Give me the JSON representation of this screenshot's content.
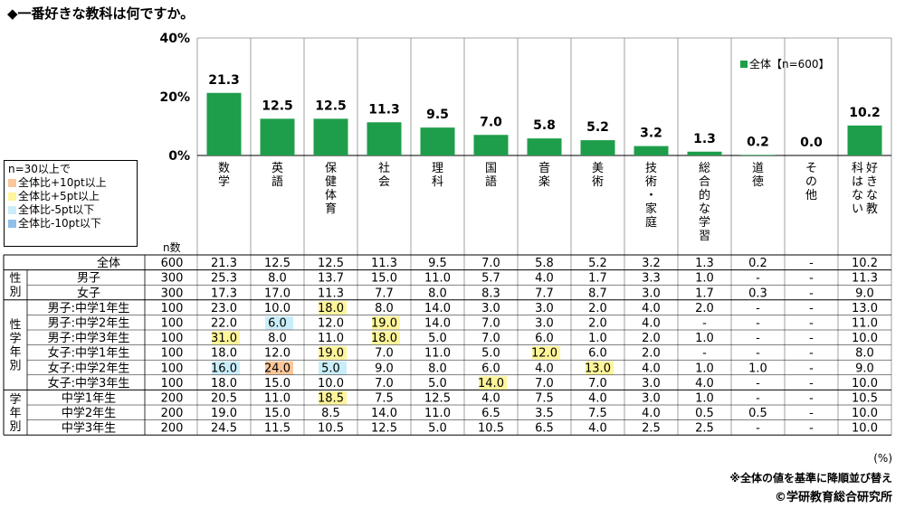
{
  "title": "◆一番好きな教科は何ですか。",
  "colors": {
    "bar": "#1e9e4a",
    "orange": "#fbc79a",
    "yellow": "#fff59a",
    "lightblue": "#c9eefa",
    "blue": "#8fc0ea"
  },
  "legend": {
    "title": "n=30以上で",
    "items": [
      {
        "label": "全体比+10pt以上",
        "color": "#fbc79a"
      },
      {
        "label": "全体比+5pt以上",
        "color": "#fff59a"
      },
      {
        "label": "全体比-5pt以下",
        "color": "#c9eefa"
      },
      {
        "label": "全体比-10pt以下",
        "color": "#8fc0ea"
      }
    ]
  },
  "n_label": "n数",
  "series_legend": "全体【n=600】",
  "footer": {
    "unit": "(%)",
    "note": "※全体の値を基準に降順並び替え",
    "copyright": "©学研教育総合研究所"
  },
  "chart_data": {
    "type": "bar",
    "ylim": [
      0,
      40
    ],
    "yticks": [
      "0%",
      "20%",
      "40%"
    ],
    "categories": [
      "数学",
      "英語",
      "保健体育",
      "社会",
      "理科",
      "国語",
      "音楽",
      "美術",
      "技術・家庭",
      "総合的な学習",
      "道徳",
      "その他",
      "好きな教科はない"
    ],
    "series": [
      {
        "name": "全体【n=600】",
        "values": [
          21.3,
          12.5,
          12.5,
          11.3,
          9.5,
          7.0,
          5.8,
          5.2,
          3.2,
          1.3,
          0.2,
          0.0,
          10.2
        ]
      }
    ],
    "value_labels": [
      "21.3",
      "12.5",
      "12.5",
      "11.3",
      "9.5",
      "7.0",
      "5.8",
      "5.2",
      "3.2",
      "1.3",
      "0.2",
      "0.0",
      "10.2"
    ]
  },
  "table": {
    "groups": [
      {
        "label": "",
        "rows": [
          0
        ]
      },
      {
        "label": "性別",
        "rows": [
          1,
          2
        ]
      },
      {
        "label": "性学年別",
        "rows": [
          3,
          4,
          5,
          6,
          7,
          8
        ]
      },
      {
        "label": "学年別",
        "rows": [
          9,
          10,
          11
        ]
      }
    ],
    "rows": [
      {
        "label": "全体",
        "n": "600",
        "cells": [
          "21.3",
          "12.5",
          "12.5",
          "11.3",
          "9.5",
          "7.0",
          "5.8",
          "5.2",
          "3.2",
          "1.3",
          "0.2",
          "-",
          "10.2"
        ],
        "hl": {}
      },
      {
        "label": "男子",
        "n": "300",
        "cells": [
          "25.3",
          "8.0",
          "13.7",
          "15.0",
          "11.0",
          "5.7",
          "4.0",
          "1.7",
          "3.3",
          "1.0",
          "-",
          "-",
          "11.3"
        ],
        "hl": {}
      },
      {
        "label": "女子",
        "n": "300",
        "cells": [
          "17.3",
          "17.0",
          "11.3",
          "7.7",
          "8.0",
          "8.3",
          "7.7",
          "8.7",
          "3.0",
          "1.7",
          "0.3",
          "-",
          "9.0"
        ],
        "hl": {}
      },
      {
        "label": "男子:中学1年生",
        "n": "100",
        "cells": [
          "23.0",
          "10.0",
          "18.0",
          "8.0",
          "14.0",
          "3.0",
          "3.0",
          "2.0",
          "4.0",
          "2.0",
          "-",
          "-",
          "13.0"
        ],
        "hl": {
          "2": "yellow"
        }
      },
      {
        "label": "男子:中学2年生",
        "n": "100",
        "cells": [
          "22.0",
          "6.0",
          "12.0",
          "19.0",
          "14.0",
          "7.0",
          "3.0",
          "2.0",
          "4.0",
          "-",
          "-",
          "-",
          "11.0"
        ],
        "hl": {
          "1": "lightblue",
          "3": "yellow"
        }
      },
      {
        "label": "男子:中学3年生",
        "n": "100",
        "cells": [
          "31.0",
          "8.0",
          "11.0",
          "18.0",
          "5.0",
          "7.0",
          "6.0",
          "1.0",
          "2.0",
          "1.0",
          "-",
          "-",
          "10.0"
        ],
        "hl": {
          "0": "yellow",
          "3": "yellow"
        }
      },
      {
        "label": "女子:中学1年生",
        "n": "100",
        "cells": [
          "18.0",
          "12.0",
          "19.0",
          "7.0",
          "11.0",
          "5.0",
          "12.0",
          "6.0",
          "2.0",
          "-",
          "-",
          "-",
          "8.0"
        ],
        "hl": {
          "2": "yellow",
          "6": "yellow"
        }
      },
      {
        "label": "女子:中学2年生",
        "n": "100",
        "cells": [
          "16.0",
          "24.0",
          "5.0",
          "9.0",
          "8.0",
          "6.0",
          "4.0",
          "13.0",
          "4.0",
          "1.0",
          "1.0",
          "-",
          "9.0"
        ],
        "hl": {
          "0": "lightblue",
          "1": "orange",
          "2": "lightblue",
          "7": "yellow"
        }
      },
      {
        "label": "女子:中学3年生",
        "n": "100",
        "cells": [
          "18.0",
          "15.0",
          "10.0",
          "7.0",
          "5.0",
          "14.0",
          "7.0",
          "7.0",
          "3.0",
          "4.0",
          "-",
          "-",
          "10.0"
        ],
        "hl": {
          "5": "yellow"
        }
      },
      {
        "label": "中学1年生",
        "n": "200",
        "cells": [
          "20.5",
          "11.0",
          "18.5",
          "7.5",
          "12.5",
          "4.0",
          "7.5",
          "4.0",
          "3.0",
          "1.0",
          "-",
          "-",
          "10.5"
        ],
        "hl": {
          "2": "yellow"
        }
      },
      {
        "label": "中学2年生",
        "n": "200",
        "cells": [
          "19.0",
          "15.0",
          "8.5",
          "14.0",
          "11.0",
          "6.5",
          "3.5",
          "7.5",
          "4.0",
          "0.5",
          "0.5",
          "-",
          "10.0"
        ],
        "hl": {}
      },
      {
        "label": "中学3年生",
        "n": "200",
        "cells": [
          "24.5",
          "11.5",
          "10.5",
          "12.5",
          "5.0",
          "10.5",
          "6.5",
          "4.0",
          "2.5",
          "2.5",
          "-",
          "-",
          "10.0"
        ],
        "hl": {}
      }
    ]
  }
}
